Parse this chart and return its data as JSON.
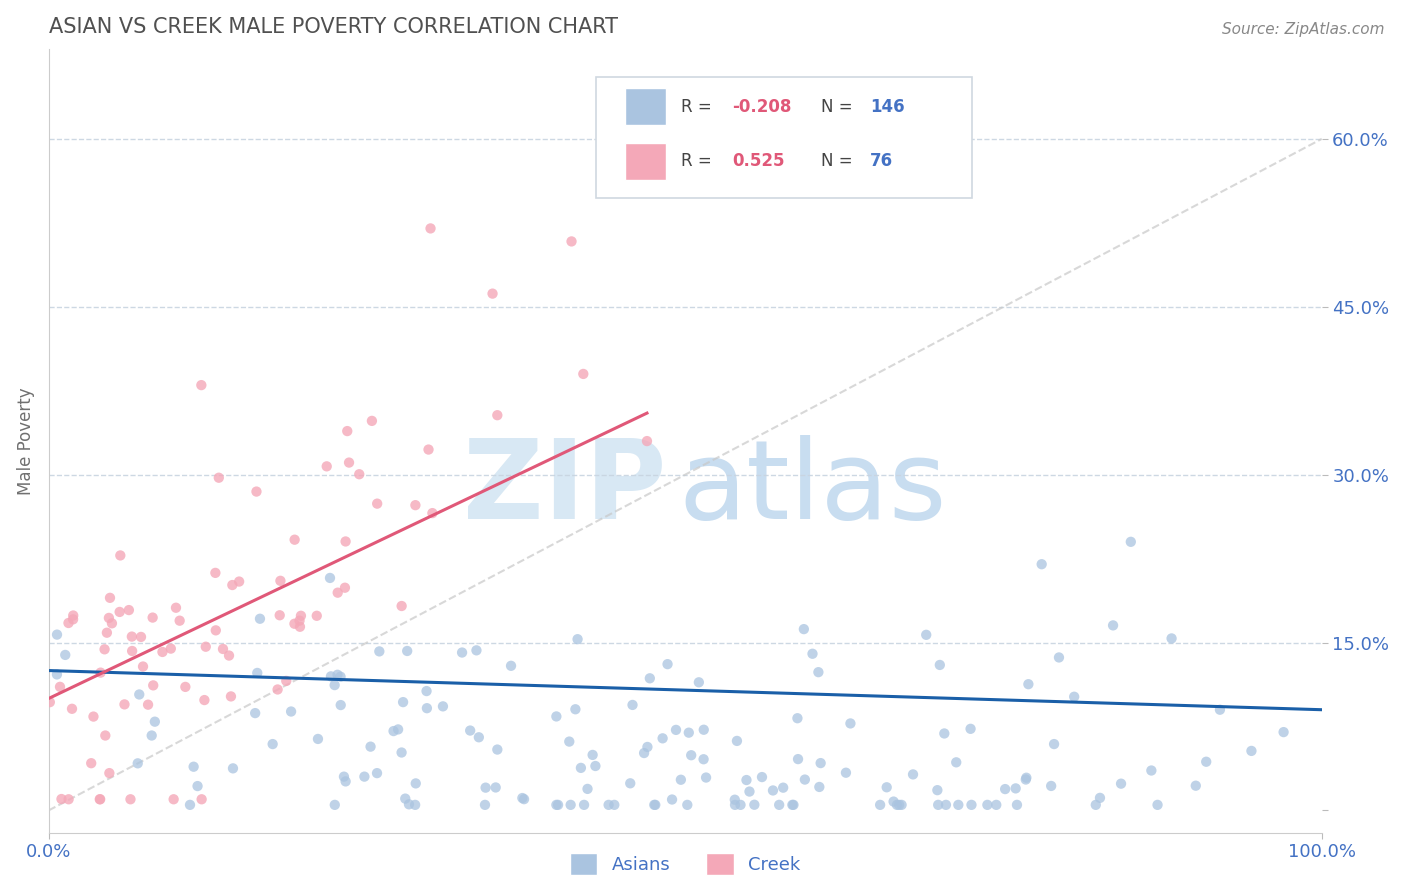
{
  "title": "ASIAN VS CREEK MALE POVERTY CORRELATION CHART",
  "source": "Source: ZipAtlas.com",
  "xlim": [
    0.0,
    1.0
  ],
  "ylim": [
    -0.02,
    0.68
  ],
  "ylabel_ticks": [
    0.0,
    0.15,
    0.3,
    0.45,
    0.6
  ],
  "ylabel_tick_labels": [
    "",
    "15.0%",
    "30.0%",
    "45.0%",
    "60.0%"
  ],
  "asian_R": -0.208,
  "asian_N": 146,
  "creek_R": 0.525,
  "creek_N": 76,
  "asian_color": "#aac4e0",
  "creek_color": "#f4a8b8",
  "asian_line_color": "#1a5fa8",
  "creek_line_color": "#e05878",
  "ref_line_color": "#c8c8c8",
  "background_color": "#ffffff",
  "grid_color": "#c8d4e0",
  "title_color": "#505050",
  "axis_label_color": "#4472c4",
  "legend_R_neg_color": "#e05878",
  "legend_R_pos_color": "#e05878",
  "legend_N_color": "#4472c4",
  "watermark_zip_color": "#d8e8f4",
  "watermark_atlas_color": "#c8ddf0"
}
